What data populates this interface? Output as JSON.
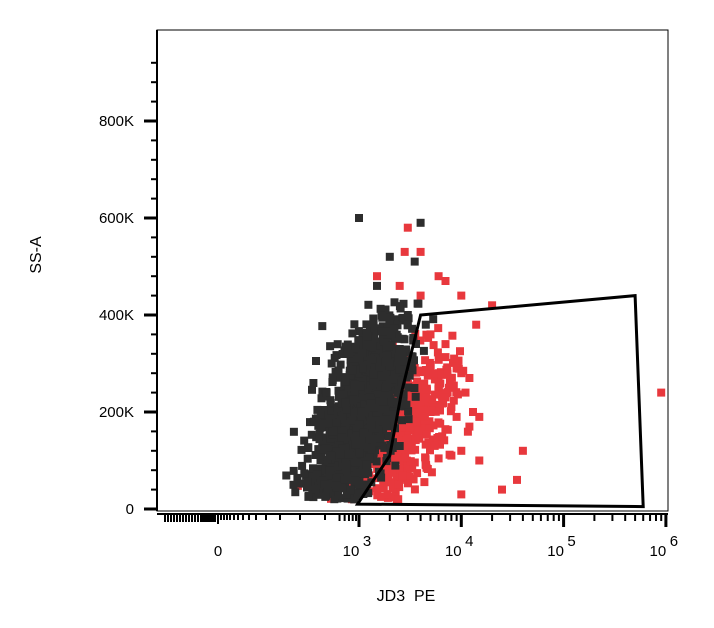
{
  "chart_data": {
    "type": "scatter",
    "title": "",
    "xlabel": "JD3  PE",
    "ylabel": "SS-A",
    "x_scale": "biexponential",
    "ylim": [
      0,
      1000000
    ],
    "x_ticks": [
      {
        "value": 0,
        "text": "0"
      },
      {
        "value": 1000,
        "base": "10",
        "exp": "3"
      },
      {
        "value": 10000,
        "base": "10",
        "exp": "4"
      },
      {
        "value": 100000,
        "base": "10",
        "exp": "5"
      },
      {
        "value": 1000000,
        "base": "10",
        "exp": "6"
      }
    ],
    "y_ticks": [
      {
        "value": 0,
        "text": "0"
      },
      {
        "value": 200000,
        "text": "200K"
      },
      {
        "value": 400000,
        "text": "400K"
      },
      {
        "value": 600000,
        "text": "600K"
      },
      {
        "value": 800000,
        "text": "800K"
      }
    ],
    "grid": false,
    "legend": "none",
    "gate": {
      "shape": "polygon",
      "color": "#000000",
      "vertices": [
        [
          950,
          10000
        ],
        [
          2000,
          110000
        ],
        [
          2600,
          240000
        ],
        [
          4000,
          400000
        ],
        [
          500000,
          440000
        ],
        [
          600000,
          5000
        ]
      ]
    },
    "series": [
      {
        "color": "#2d2d2d",
        "cluster": {
          "x_center": 1000,
          "y_center": 190000,
          "count": 1500
        },
        "points": [
          [
            1000,
            600000
          ],
          [
            4000,
            590000
          ],
          [
            3500,
            510000
          ],
          [
            2000,
            520000
          ],
          [
            1500,
            460000
          ],
          [
            3000,
            400000
          ],
          [
            400,
            160000
          ],
          [
            200,
            180000
          ],
          [
            350,
            80000
          ],
          [
            600,
            60000
          ],
          [
            1000,
            50000
          ],
          [
            300,
            25000
          ],
          [
            2500,
            330000
          ],
          [
            3000,
            380000
          ],
          [
            2000,
            300000
          ],
          [
            1800,
            250000
          ],
          [
            700,
            320000
          ],
          [
            4500,
            380000
          ]
        ]
      },
      {
        "color": "#e8383d",
        "cluster": {
          "x_center": 2000,
          "y_center": 160000,
          "count": 500
        },
        "points": [
          [
            3000,
            580000
          ],
          [
            4000,
            530000
          ],
          [
            2800,
            530000
          ],
          [
            6000,
            480000
          ],
          [
            7000,
            470000
          ],
          [
            10000,
            440000
          ],
          [
            20000,
            420000
          ],
          [
            14000,
            380000
          ],
          [
            7000,
            340000
          ],
          [
            8500,
            310000
          ],
          [
            9000,
            290000
          ],
          [
            10000,
            280000
          ],
          [
            12000,
            270000
          ],
          [
            13000,
            200000
          ],
          [
            15000,
            190000
          ],
          [
            12000,
            170000
          ],
          [
            10000,
            120000
          ],
          [
            15000,
            100000
          ],
          [
            40000,
            120000
          ],
          [
            35000,
            60000
          ],
          [
            25000,
            40000
          ],
          [
            10000,
            30000
          ],
          [
            900000,
            240000
          ],
          [
            5000,
            360000
          ],
          [
            6000,
            260000
          ],
          [
            7000,
            230000
          ],
          [
            8000,
            210000
          ],
          [
            9000,
            190000
          ],
          [
            6500,
            150000
          ],
          [
            5500,
            130000
          ],
          [
            8000,
            110000
          ],
          [
            11000,
            240000
          ],
          [
            1500,
            480000
          ],
          [
            2500,
            460000
          ],
          [
            4000,
            440000
          ],
          [
            3500,
            250000
          ],
          [
            4500,
            230000
          ],
          [
            5000,
            200000
          ]
        ]
      }
    ]
  }
}
